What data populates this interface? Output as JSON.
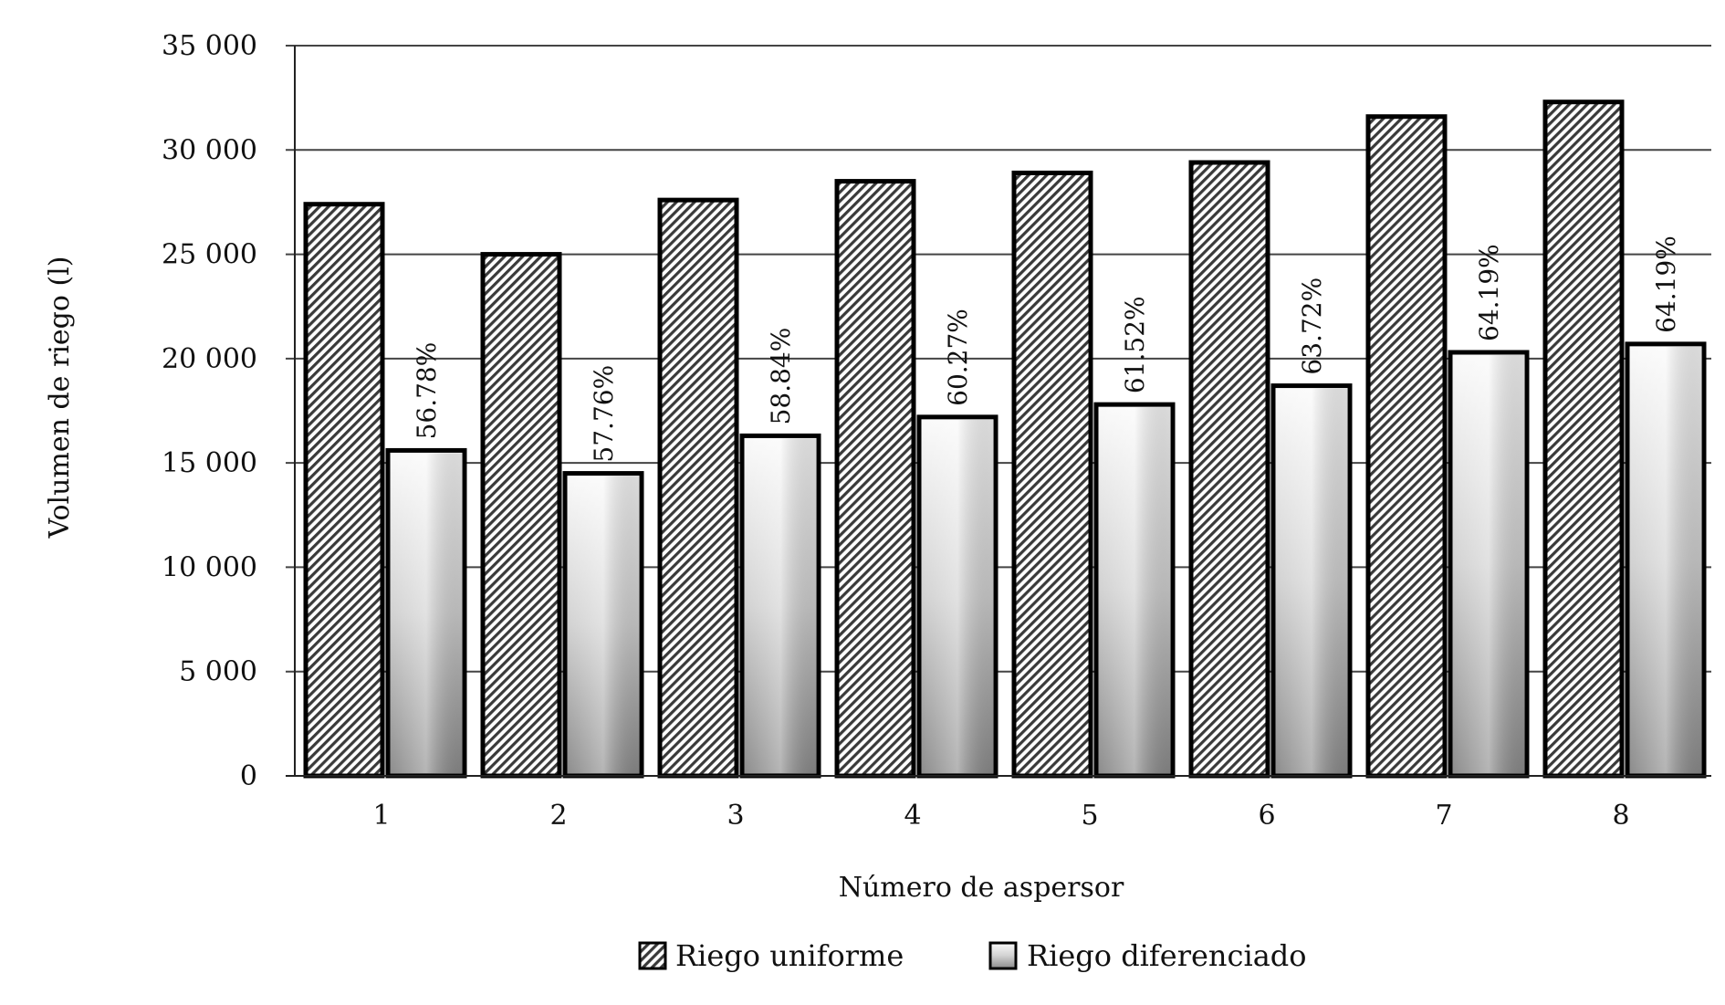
{
  "chart_data": {
    "type": "bar",
    "title": "",
    "xlabel": "Número de aspersor",
    "ylabel": "Volumen de riego (l)",
    "categories": [
      "1",
      "2",
      "3",
      "4",
      "5",
      "6",
      "7",
      "8"
    ],
    "ylim": [
      0,
      35000
    ],
    "yticks": [
      0,
      5000,
      10000,
      15000,
      20000,
      25000,
      30000,
      35000
    ],
    "ytick_labels": [
      "0",
      "5 000",
      "10 000",
      "15 000",
      "20 000",
      "25 000",
      "30 000",
      "35 000"
    ],
    "grid": true,
    "legend_position": "bottom",
    "series": [
      {
        "name": "Riego uniforme",
        "values": [
          27400,
          25000,
          27600,
          28500,
          28900,
          29400,
          31600,
          32300
        ],
        "pattern": "hatched",
        "color": "#3a3a3a"
      },
      {
        "name": "Riego diferenciado",
        "values": [
          15600,
          14500,
          16300,
          17200,
          17800,
          18700,
          20300,
          20700
        ],
        "pattern": "gradient",
        "color": "#a9a9a9",
        "data_labels": [
          "56.78%",
          "57.76%",
          "58.84%",
          "60.27%",
          "61.52%",
          "63.72%",
          "64.19%",
          "64.19%"
        ]
      }
    ]
  }
}
